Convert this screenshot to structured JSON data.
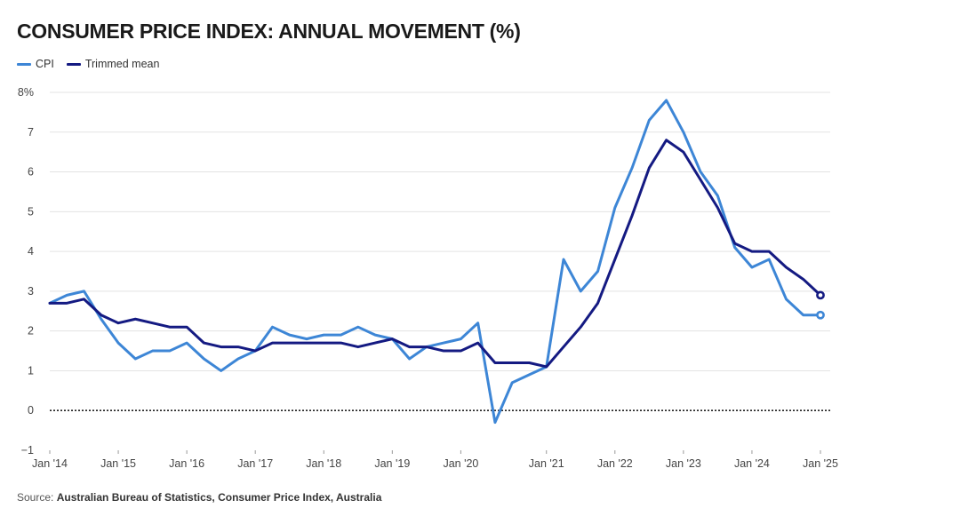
{
  "title": "CONSUMER PRICE INDEX: ANNUAL MOVEMENT (%)",
  "source": {
    "prefix": "Source:",
    "text": "Australian Bureau of Statistics, Consumer Price Index, Australia"
  },
  "colors": {
    "cpi": "#3d86d6",
    "trimmed_mean": "#141a82",
    "grid": "#e3e3e3",
    "zero_line": "#222222",
    "tick_text": "#444444"
  },
  "chart_data": {
    "type": "line",
    "title": "CONSUMER PRICE INDEX: ANNUAL MOVEMENT (%)",
    "xlabel": "",
    "ylabel": "",
    "ylim": [
      -1,
      8
    ],
    "yticks": [
      -1,
      0,
      1,
      2,
      3,
      4,
      5,
      6,
      7,
      8
    ],
    "ytick_labels": [
      "−1",
      "0",
      "1",
      "2",
      "3",
      "4",
      "5",
      "6",
      "7",
      "8%"
    ],
    "xticks": [
      {
        "index": 0,
        "label": "Jan '14"
      },
      {
        "index": 4,
        "label": "Jan '15"
      },
      {
        "index": 8,
        "label": "Jan '16"
      },
      {
        "index": 12,
        "label": "Jan '17"
      },
      {
        "index": 16,
        "label": "Jan '18"
      },
      {
        "index": 20,
        "label": "Jan '19"
      },
      {
        "index": 24,
        "label": "Jan '20"
      },
      {
        "index": 29,
        "label": "Jan '21"
      },
      {
        "index": 33,
        "label": "Jan '22"
      },
      {
        "index": 37,
        "label": "Jan '23"
      },
      {
        "index": 41,
        "label": "Jan '24"
      },
      {
        "index": 45,
        "label": "Jan '25"
      }
    ],
    "x_count": 46,
    "grid": true,
    "zero_line_dotted": true,
    "legend_position": "top-left",
    "series": [
      {
        "name": "CPI",
        "color": "#3d86d6",
        "end_marker": true,
        "values": [
          2.7,
          2.9,
          3.0,
          2.3,
          1.7,
          1.3,
          1.5,
          1.5,
          1.7,
          1.3,
          1.0,
          1.3,
          1.5,
          2.1,
          1.9,
          1.8,
          1.9,
          1.9,
          2.1,
          1.9,
          1.8,
          1.3,
          1.6,
          1.7,
          1.8,
          2.2,
          -0.3,
          0.7,
          0.9,
          1.1,
          3.8,
          3.0,
          3.5,
          5.1,
          6.1,
          7.3,
          7.8,
          7.0,
          6.0,
          5.4,
          4.1,
          3.6,
          3.8,
          2.8,
          2.4,
          2.4
        ]
      },
      {
        "name": "Trimmed mean",
        "color": "#141a82",
        "end_marker": true,
        "values": [
          2.7,
          2.7,
          2.8,
          2.4,
          2.2,
          2.3,
          2.2,
          2.1,
          2.1,
          1.7,
          1.6,
          1.6,
          1.5,
          1.7,
          1.7,
          1.7,
          1.7,
          1.7,
          1.6,
          1.7,
          1.8,
          1.6,
          1.6,
          1.5,
          1.5,
          1.7,
          1.2,
          1.2,
          1.2,
          1.1,
          1.6,
          2.1,
          2.7,
          3.8,
          4.9,
          6.1,
          6.8,
          6.5,
          5.8,
          5.1,
          4.2,
          4.0,
          4.0,
          3.6,
          3.3,
          2.9
        ]
      }
    ]
  }
}
